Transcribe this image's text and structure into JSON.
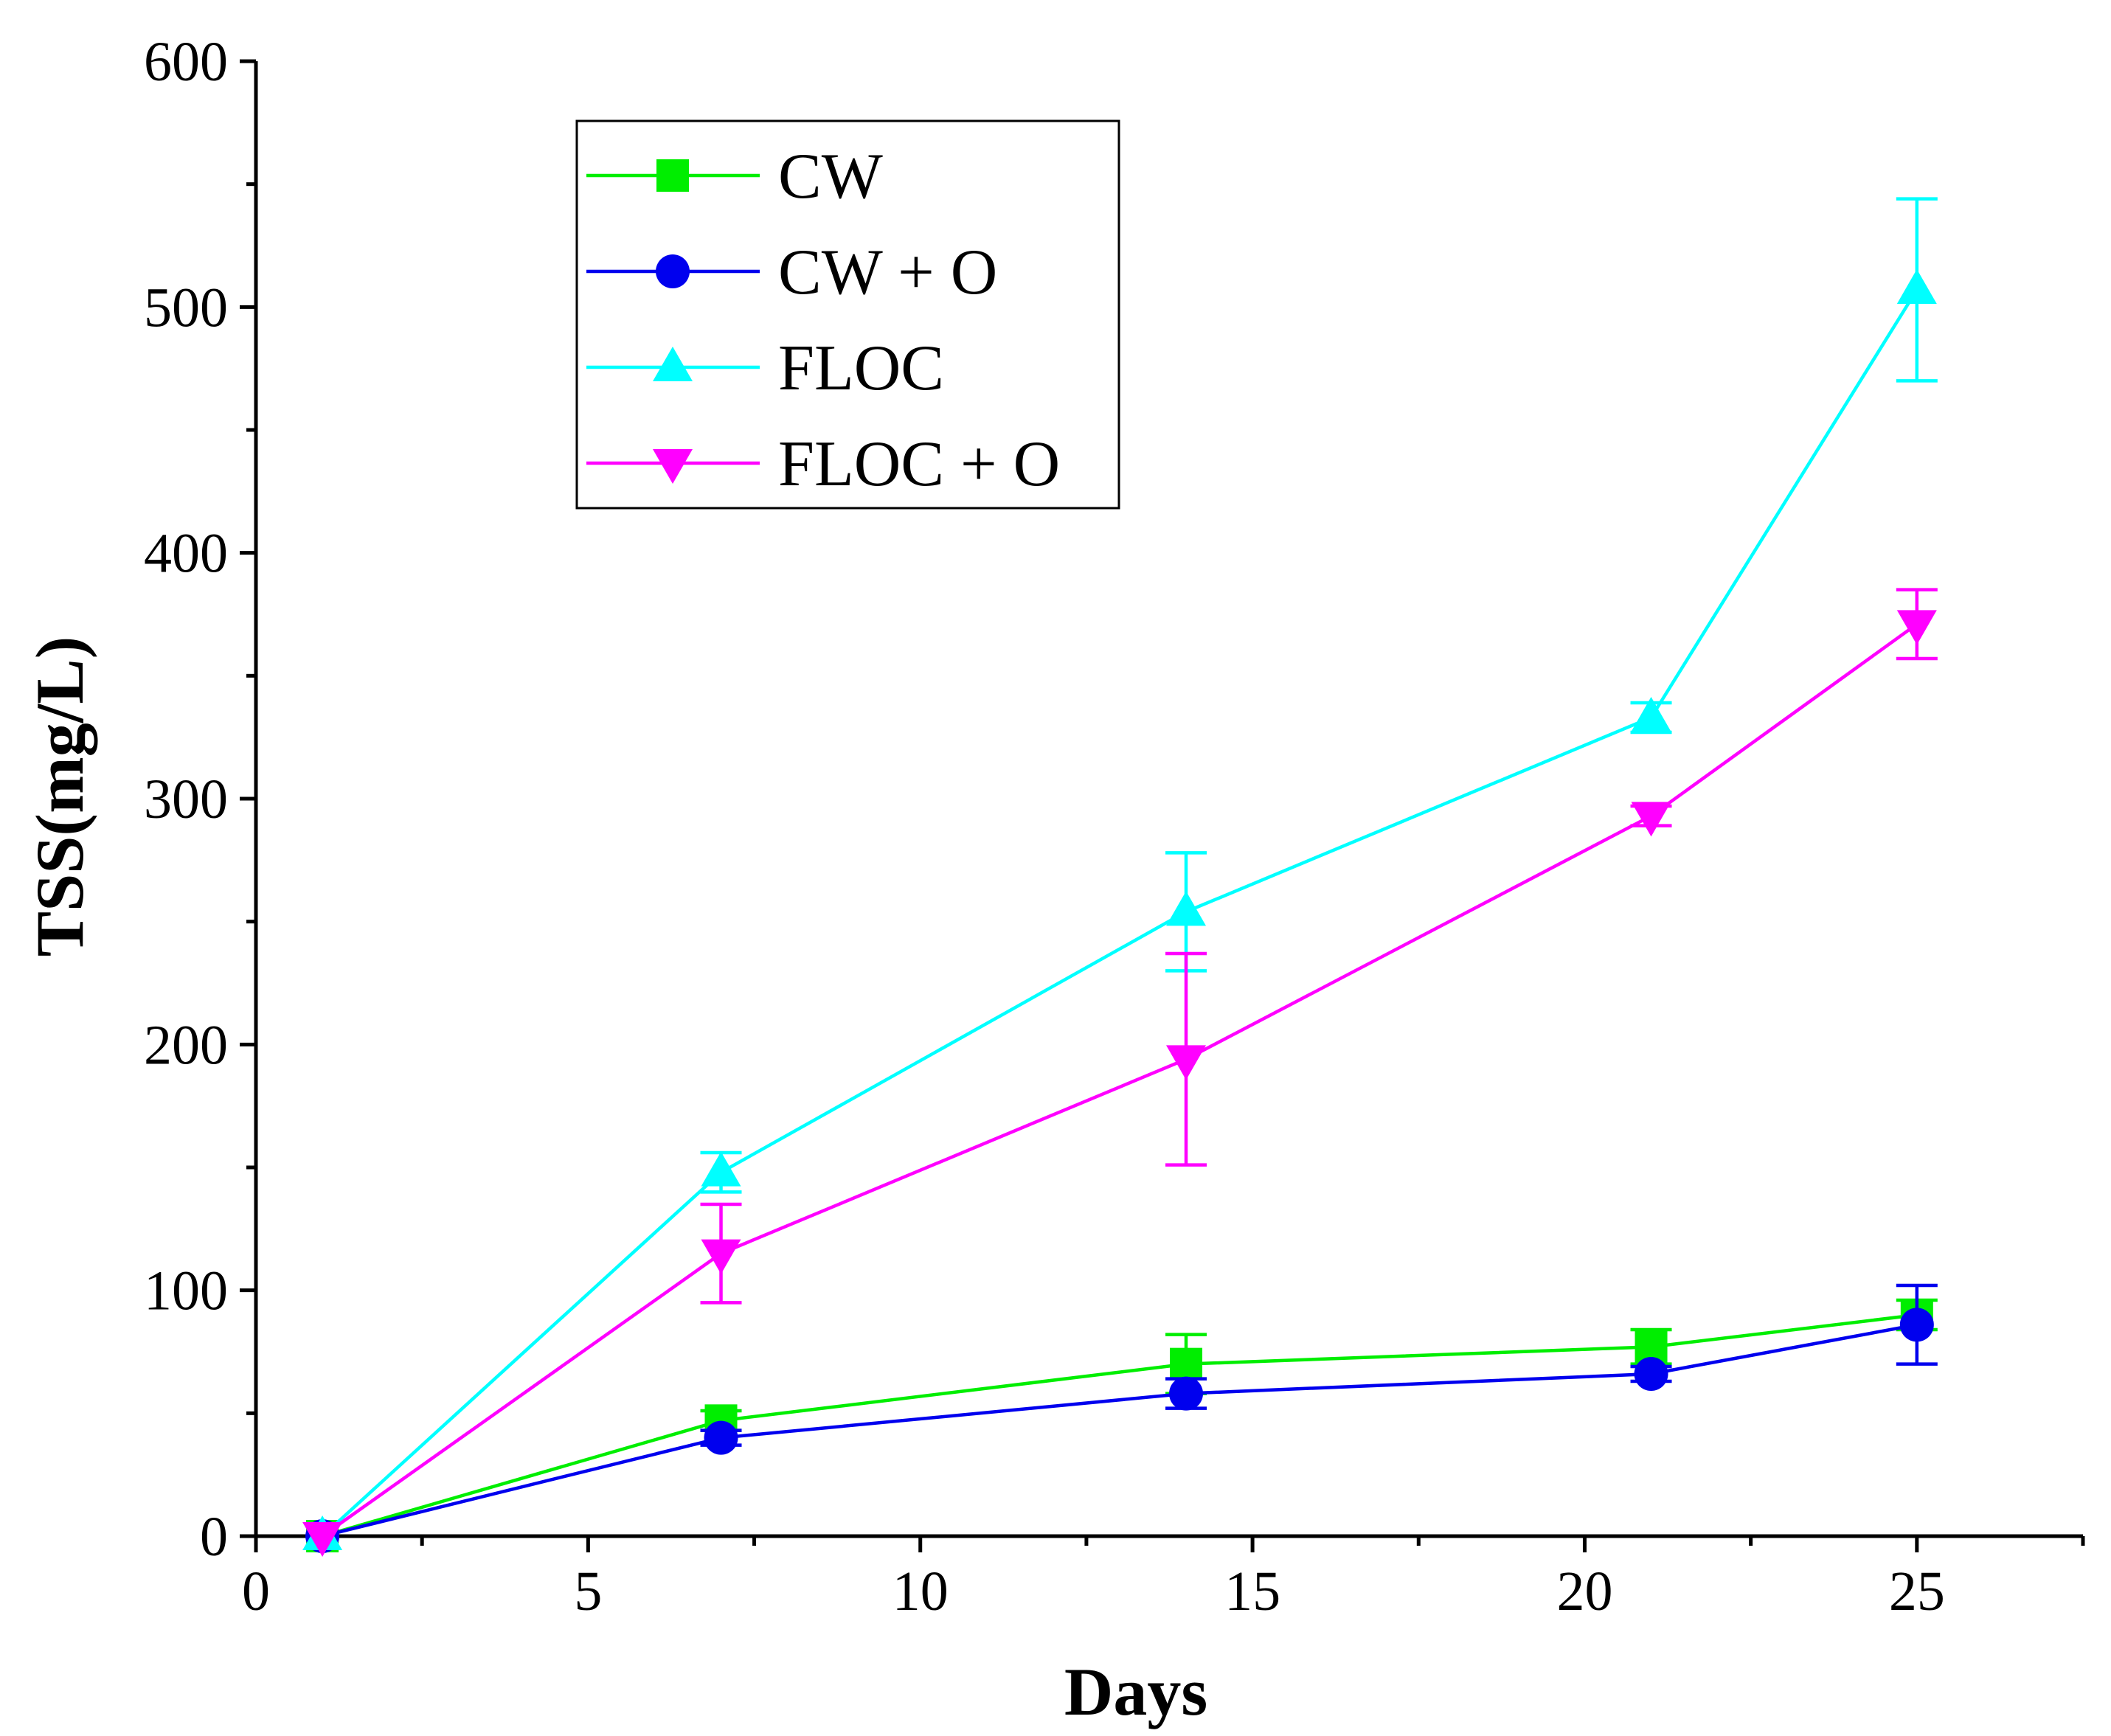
{
  "chart_data": {
    "type": "line",
    "title": "",
    "xlabel": "Days",
    "ylabel": "TSS(mg/L)",
    "xlim": [
      0,
      27.5
    ],
    "ylim": [
      0,
      600
    ],
    "xticks": [
      0,
      5,
      10,
      15,
      20,
      25
    ],
    "yticks": [
      0,
      100,
      200,
      300,
      400,
      500,
      600
    ],
    "x": [
      1,
      7,
      14,
      21,
      25
    ],
    "legend_position": "top-left",
    "series": [
      {
        "name": "CW",
        "color": "#00ee00",
        "marker": "square",
        "values": [
          0,
          47,
          70,
          77,
          90
        ],
        "errors": [
          0,
          4,
          12,
          7,
          6
        ]
      },
      {
        "name": "CW + O",
        "color": "#0000ee",
        "marker": "circle",
        "values": [
          0,
          40,
          58,
          66,
          86
        ],
        "errors": [
          0,
          3,
          6,
          3,
          16
        ]
      },
      {
        "name": "FLOC",
        "color": "#00ffff",
        "marker": "triangle-up",
        "values": [
          0,
          148,
          254,
          333,
          507
        ],
        "errors": [
          0,
          8,
          24,
          6,
          37
        ]
      },
      {
        "name": "FLOC + O",
        "color": "#ff00ff",
        "marker": "triangle-down",
        "values": [
          0,
          115,
          194,
          293,
          371
        ],
        "errors": [
          0,
          20,
          43,
          4,
          14
        ]
      }
    ]
  }
}
